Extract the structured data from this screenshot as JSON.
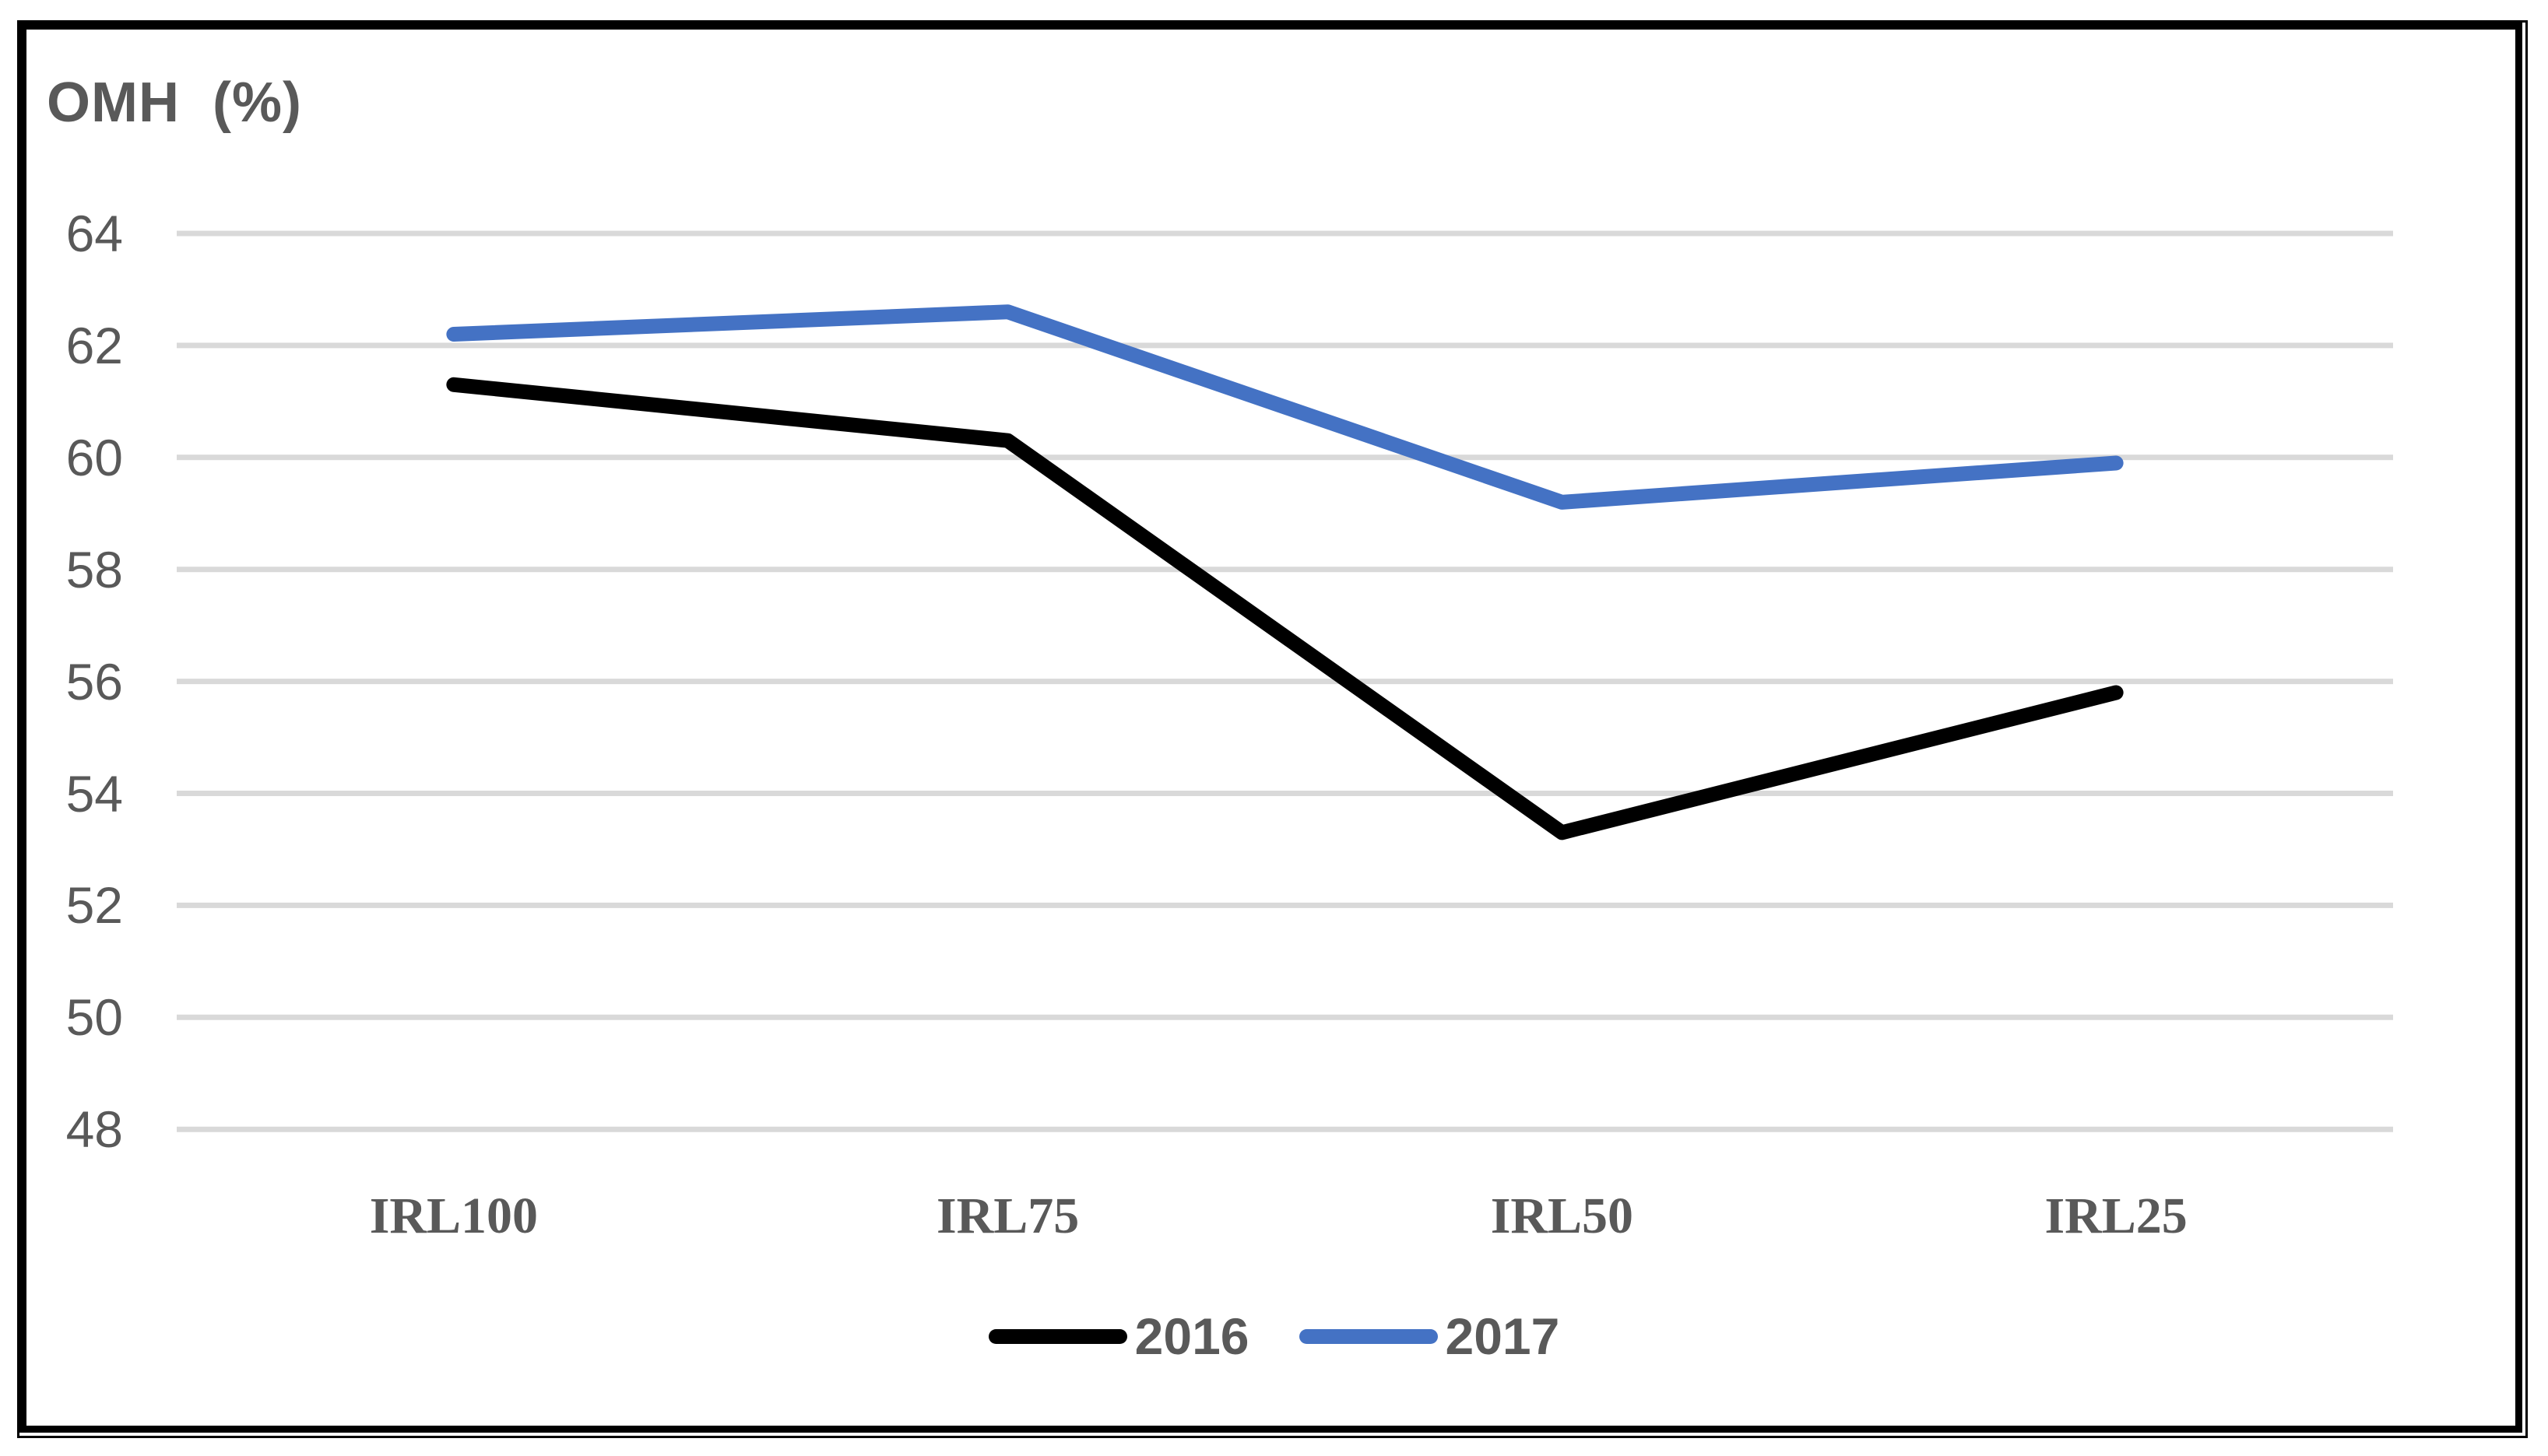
{
  "chart_data": {
    "type": "line",
    "title": "OMH  (%)",
    "categories": [
      "IRL100",
      "IRL75",
      "IRL50",
      "IRL25"
    ],
    "series": [
      {
        "name": "2016",
        "color": "#000000",
        "values": [
          61.3,
          60.3,
          53.3,
          55.8
        ]
      },
      {
        "name": "2017",
        "color": "#4472C4",
        "values": [
          62.2,
          62.6,
          59.2,
          59.9
        ]
      }
    ],
    "xlabel": "",
    "ylabel": "",
    "ylim": [
      48,
      64
    ],
    "yticks": [
      48,
      50,
      52,
      54,
      56,
      58,
      60,
      62,
      64
    ],
    "grid": "horizontal",
    "gridline_color": "#D9D9D9",
    "axis_text_color": "#595959",
    "frame_color": "#000000",
    "legend_position": "bottom",
    "legend_entries": [
      "2016",
      "2017"
    ]
  }
}
